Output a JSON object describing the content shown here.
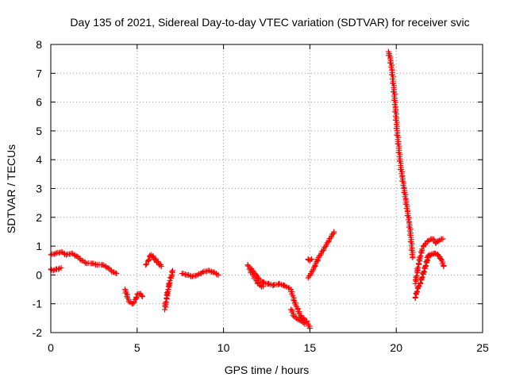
{
  "chart_data": {
    "type": "scatter",
    "title": "Day 135 of 2021, Sidereal Day-to-day VTEC variation (SDTVAR) for receiver svic",
    "xlabel": "GPS time / hours",
    "ylabel": "SDTVAR / TECUs",
    "xlim": [
      0,
      25
    ],
    "ylim": [
      -2,
      8
    ],
    "xticks": [
      "0",
      "5",
      "10",
      "15",
      "20",
      "25"
    ],
    "yticks": [
      "-2",
      "-1",
      "0",
      "1",
      "2",
      "3",
      "4",
      "5",
      "6",
      "7",
      "8"
    ],
    "grid": true,
    "marker": "+",
    "color": "#ff0000",
    "segments": [
      {
        "x": [
          0.0,
          0.3,
          0.6,
          0.9,
          1.2,
          1.5,
          1.8,
          2.1,
          2.4,
          2.7,
          3.0,
          3.3,
          3.6,
          3.8
        ],
        "y": [
          0.7,
          0.75,
          0.8,
          0.7,
          0.75,
          0.65,
          0.5,
          0.4,
          0.4,
          0.35,
          0.35,
          0.25,
          0.1,
          0.05
        ]
      },
      {
        "x": [
          0.0,
          0.15,
          0.3,
          0.45,
          0.6
        ],
        "y": [
          0.2,
          0.15,
          0.2,
          0.2,
          0.25
        ]
      },
      {
        "x": [
          4.3,
          4.45,
          4.6,
          4.75,
          4.9,
          5.05,
          5.2,
          5.3
        ],
        "y": [
          -0.5,
          -0.8,
          -0.95,
          -1.0,
          -0.85,
          -0.65,
          -0.65,
          -0.75
        ]
      },
      {
        "x": [
          5.5,
          5.65,
          5.8,
          5.95,
          6.1,
          6.25,
          6.4
        ],
        "y": [
          0.35,
          0.5,
          0.7,
          0.6,
          0.5,
          0.4,
          0.3
        ]
      },
      {
        "x": [
          6.6,
          6.7,
          6.8,
          6.9,
          7.0,
          7.05
        ],
        "y": [
          -1.2,
          -0.8,
          -0.5,
          -0.2,
          0.0,
          0.15
        ]
      },
      {
        "x": [
          7.6,
          7.9,
          8.2,
          8.5,
          8.8,
          9.1,
          9.4,
          9.7
        ],
        "y": [
          0.05,
          0.0,
          -0.05,
          0.0,
          0.1,
          0.15,
          0.1,
          0.0
        ]
      },
      {
        "x": [
          11.4,
          11.7,
          12.0,
          12.3,
          12.6,
          12.9,
          13.2,
          13.5,
          13.8
        ],
        "y": [
          0.35,
          0.15,
          -0.1,
          -0.25,
          -0.3,
          -0.35,
          -0.3,
          -0.35,
          -0.45
        ]
      },
      {
        "x": [
          11.5,
          11.7,
          11.9,
          12.1,
          12.3
        ],
        "y": [
          0.2,
          0.0,
          -0.2,
          -0.35,
          -0.4
        ]
      },
      {
        "x": [
          13.9,
          14.1,
          14.3,
          14.5,
          14.7,
          14.9,
          15.0
        ],
        "y": [
          -0.5,
          -0.9,
          -1.2,
          -1.45,
          -1.55,
          -1.7,
          -1.85
        ]
      },
      {
        "x": [
          13.9,
          14.1,
          14.3,
          14.5,
          14.7
        ],
        "y": [
          -1.2,
          -1.45,
          -1.55,
          -1.6,
          -1.7
        ]
      },
      {
        "x": [
          14.9,
          15.05,
          15.2,
          15.35,
          15.5,
          15.65,
          15.8,
          15.95,
          16.1,
          16.25,
          16.4
        ],
        "y": [
          -0.1,
          0.05,
          0.2,
          0.4,
          0.6,
          0.75,
          0.9,
          1.05,
          1.2,
          1.35,
          1.5
        ]
      },
      {
        "x": [
          14.9,
          15.0,
          15.1
        ],
        "y": [
          0.55,
          0.5,
          0.55
        ]
      },
      {
        "x": [
          19.55,
          19.65,
          19.75,
          19.85,
          19.95,
          20.05,
          20.15,
          20.25,
          20.35,
          20.45,
          20.55,
          20.65,
          20.75,
          20.85,
          20.95
        ],
        "y": [
          7.75,
          7.5,
          7.1,
          6.5,
          5.8,
          5.0,
          4.4,
          3.8,
          3.4,
          3.0,
          2.6,
          2.2,
          1.8,
          1.3,
          0.6
        ]
      },
      {
        "x": [
          21.1,
          21.2,
          21.3,
          21.4,
          21.5,
          21.6,
          21.7,
          21.8,
          21.9
        ],
        "y": [
          -0.8,
          -0.6,
          -0.4,
          -0.3,
          -0.1,
          0.1,
          0.3,
          0.5,
          0.7
        ]
      },
      {
        "x": [
          21.1,
          21.3,
          21.5,
          21.7,
          21.9,
          22.1,
          22.3,
          22.5,
          22.7
        ],
        "y": [
          -0.3,
          0.4,
          0.9,
          1.1,
          1.2,
          1.25,
          1.1,
          1.2,
          1.25
        ]
      },
      {
        "x": [
          21.8,
          22.0,
          22.2,
          22.4,
          22.6,
          22.75
        ],
        "y": [
          0.6,
          0.7,
          0.75,
          0.7,
          0.55,
          0.3
        ]
      }
    ]
  }
}
